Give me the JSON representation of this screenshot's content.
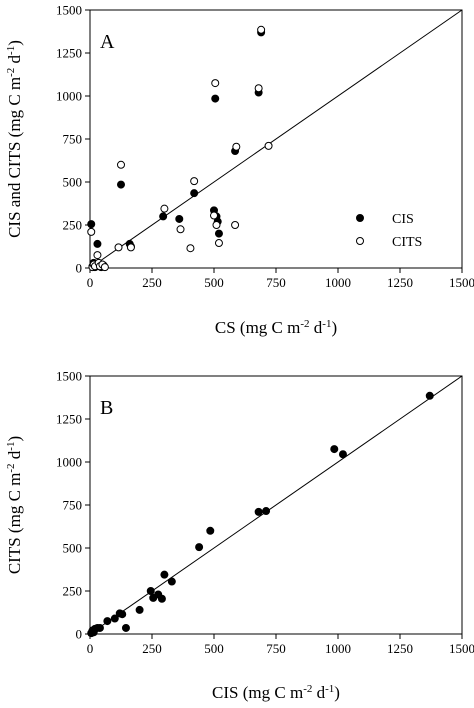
{
  "chart_data": [
    {
      "type": "scatter",
      "panel_label": "A",
      "xlabel": "CS (mg C m-2 d-1)",
      "xlabel_parts": {
        "pre": "CS (mg C m",
        "sup1": "-2",
        "mid": " d",
        "sup2": "-1",
        "post": ")"
      },
      "ylabel": "CIS and CITS (mg C m-2 d-1)",
      "ylabel_parts": {
        "pre": "CIS and CITS (mg C m",
        "sup1": "-2",
        "mid": " d",
        "sup2": "-1",
        "post": ")"
      },
      "xlim": [
        0,
        1500
      ],
      "ylim": [
        0,
        1500
      ],
      "xticks": [
        0,
        250,
        500,
        750,
        1000,
        1250,
        1500
      ],
      "yticks": [
        0,
        250,
        500,
        750,
        1000,
        1250,
        1500
      ],
      "grid": false,
      "legend_position": "lower-right",
      "reference_line": "1:1",
      "series": [
        {
          "name": "CIS",
          "marker": "filled-circle",
          "x": [
            5,
            10,
            15,
            20,
            25,
            30,
            35,
            40,
            45,
            55,
            125,
            160,
            165,
            295,
            360,
            420,
            500,
            505,
            510,
            515,
            520,
            585,
            680,
            690
          ],
          "y": [
            255,
            10,
            30,
            5,
            20,
            140,
            25,
            10,
            5,
            15,
            485,
            140,
            125,
            300,
            285,
            435,
            335,
            985,
            300,
            270,
            200,
            680,
            1020,
            1370
          ]
        },
        {
          "name": "CITS",
          "marker": "open-circle",
          "x": [
            5,
            10,
            15,
            20,
            30,
            35,
            40,
            50,
            60,
            115,
            125,
            165,
            300,
            365,
            405,
            420,
            500,
            505,
            510,
            520,
            585,
            590,
            680,
            690,
            720
          ],
          "y": [
            210,
            5,
            20,
            10,
            75,
            30,
            10,
            20,
            5,
            120,
            600,
            120,
            345,
            225,
            115,
            505,
            305,
            1075,
            250,
            145,
            250,
            705,
            1045,
            1385,
            710
          ]
        }
      ]
    },
    {
      "type": "scatter",
      "panel_label": "B",
      "xlabel": "CIS (mg C m-2 d-1)",
      "xlabel_parts": {
        "pre": "CIS (mg C m",
        "sup1": "-2",
        "mid": " d",
        "sup2": "-1",
        "post": ")"
      },
      "ylabel": "CITS (mg C m-2 d-1)",
      "ylabel_parts": {
        "pre": "CITS (mg C m",
        "sup1": "-2",
        "mid": " d",
        "sup2": "-1",
        "post": ")"
      },
      "xlim": [
        0,
        1500
      ],
      "ylim": [
        0,
        1500
      ],
      "xticks": [
        0,
        250,
        500,
        750,
        1000,
        1250,
        1500
      ],
      "yticks": [
        0,
        250,
        500,
        750,
        1000,
        1250,
        1500
      ],
      "grid": false,
      "reference_line": "1:1",
      "series": [
        {
          "marker": "filled-circle",
          "x": [
            5,
            10,
            15,
            20,
            30,
            40,
            70,
            100,
            120,
            130,
            145,
            200,
            245,
            255,
            275,
            290,
            300,
            330,
            440,
            485,
            680,
            710,
            985,
            1020,
            1370
          ],
          "y": [
            5,
            20,
            10,
            30,
            35,
            35,
            75,
            90,
            120,
            115,
            35,
            140,
            250,
            210,
            230,
            205,
            345,
            305,
            505,
            600,
            710,
            715,
            1075,
            1045,
            1385
          ]
        }
      ]
    }
  ]
}
